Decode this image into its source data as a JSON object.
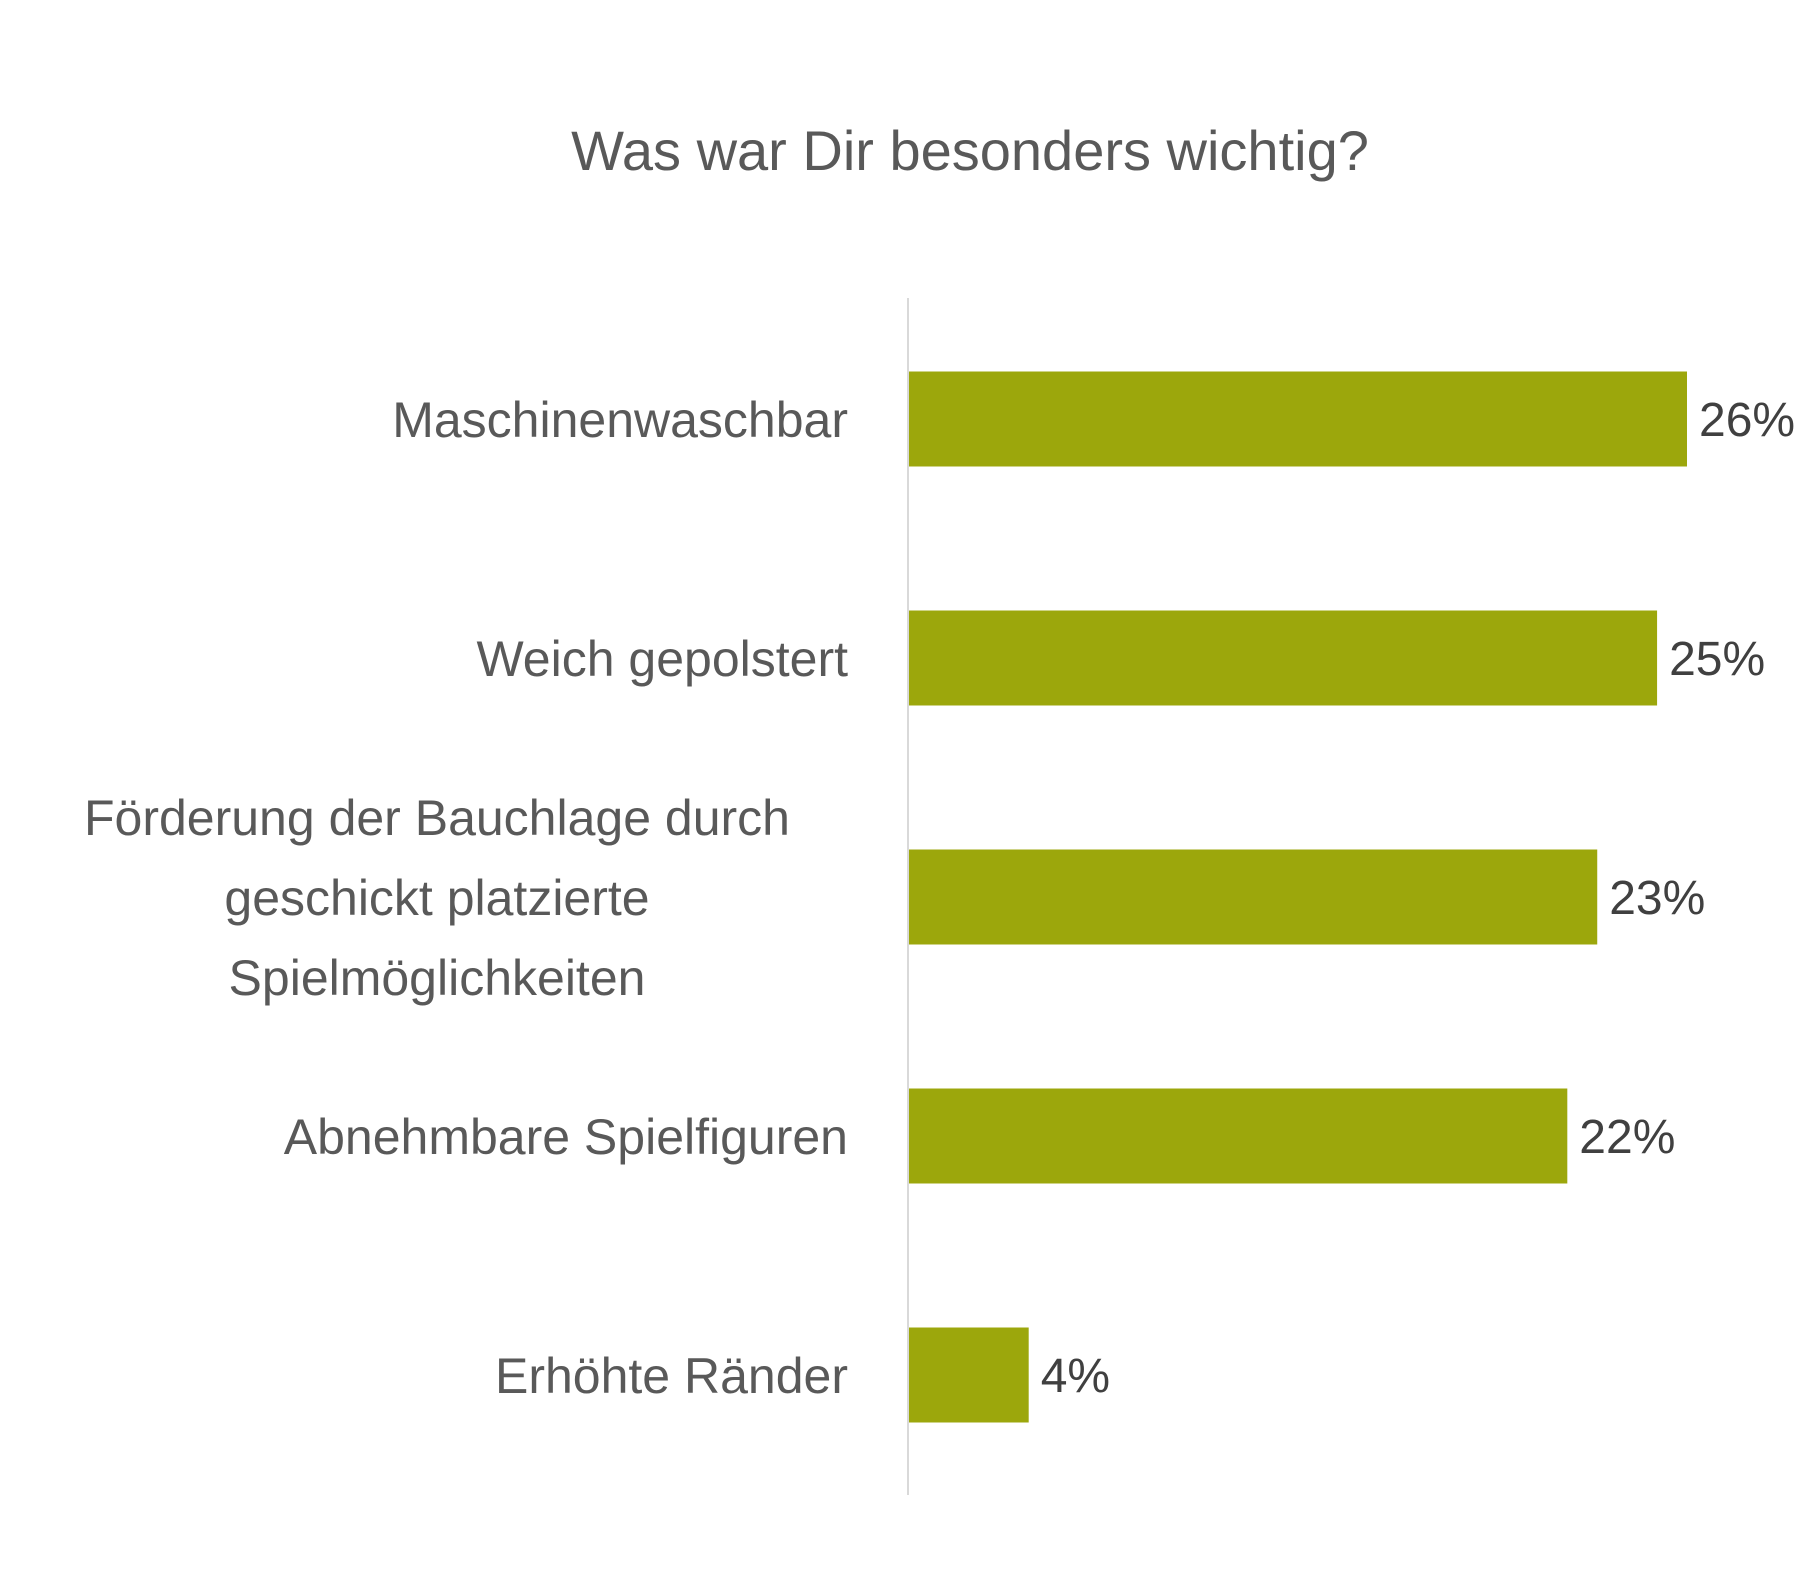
{
  "chart_data": {
    "type": "bar",
    "orientation": "horizontal",
    "title": "Was war Dir besonders wichtig?",
    "categories": [
      "Maschinenwaschbar",
      "Weich gepolstert",
      "Förderung der Bauchlage durch geschickt platzierte Spielmöglichkeiten",
      "Abnehmbare Spielfiguren",
      "Erhöhte Ränder"
    ],
    "category_lines": [
      [
        "Maschinenwaschbar"
      ],
      [
        "Weich gepolstert"
      ],
      [
        "Förderung der Bauchlage durch",
        "geschickt platzierte",
        "Spielmöglichkeiten"
      ],
      [
        "Abnehmbare Spielfiguren"
      ],
      [
        "Erhöhte Ränder"
      ]
    ],
    "values": [
      26,
      25,
      23,
      22,
      4
    ],
    "value_labels": [
      "26%",
      "25%",
      "23%",
      "22%",
      "4%"
    ],
    "unit": "%",
    "xlim": [
      0,
      26
    ],
    "grid": false,
    "legend": "none",
    "colors": {
      "bar": "#9ca70c",
      "axis": "#d9d9d9",
      "title": "#595959",
      "category_text": "#595959",
      "value_text": "#404040"
    }
  }
}
